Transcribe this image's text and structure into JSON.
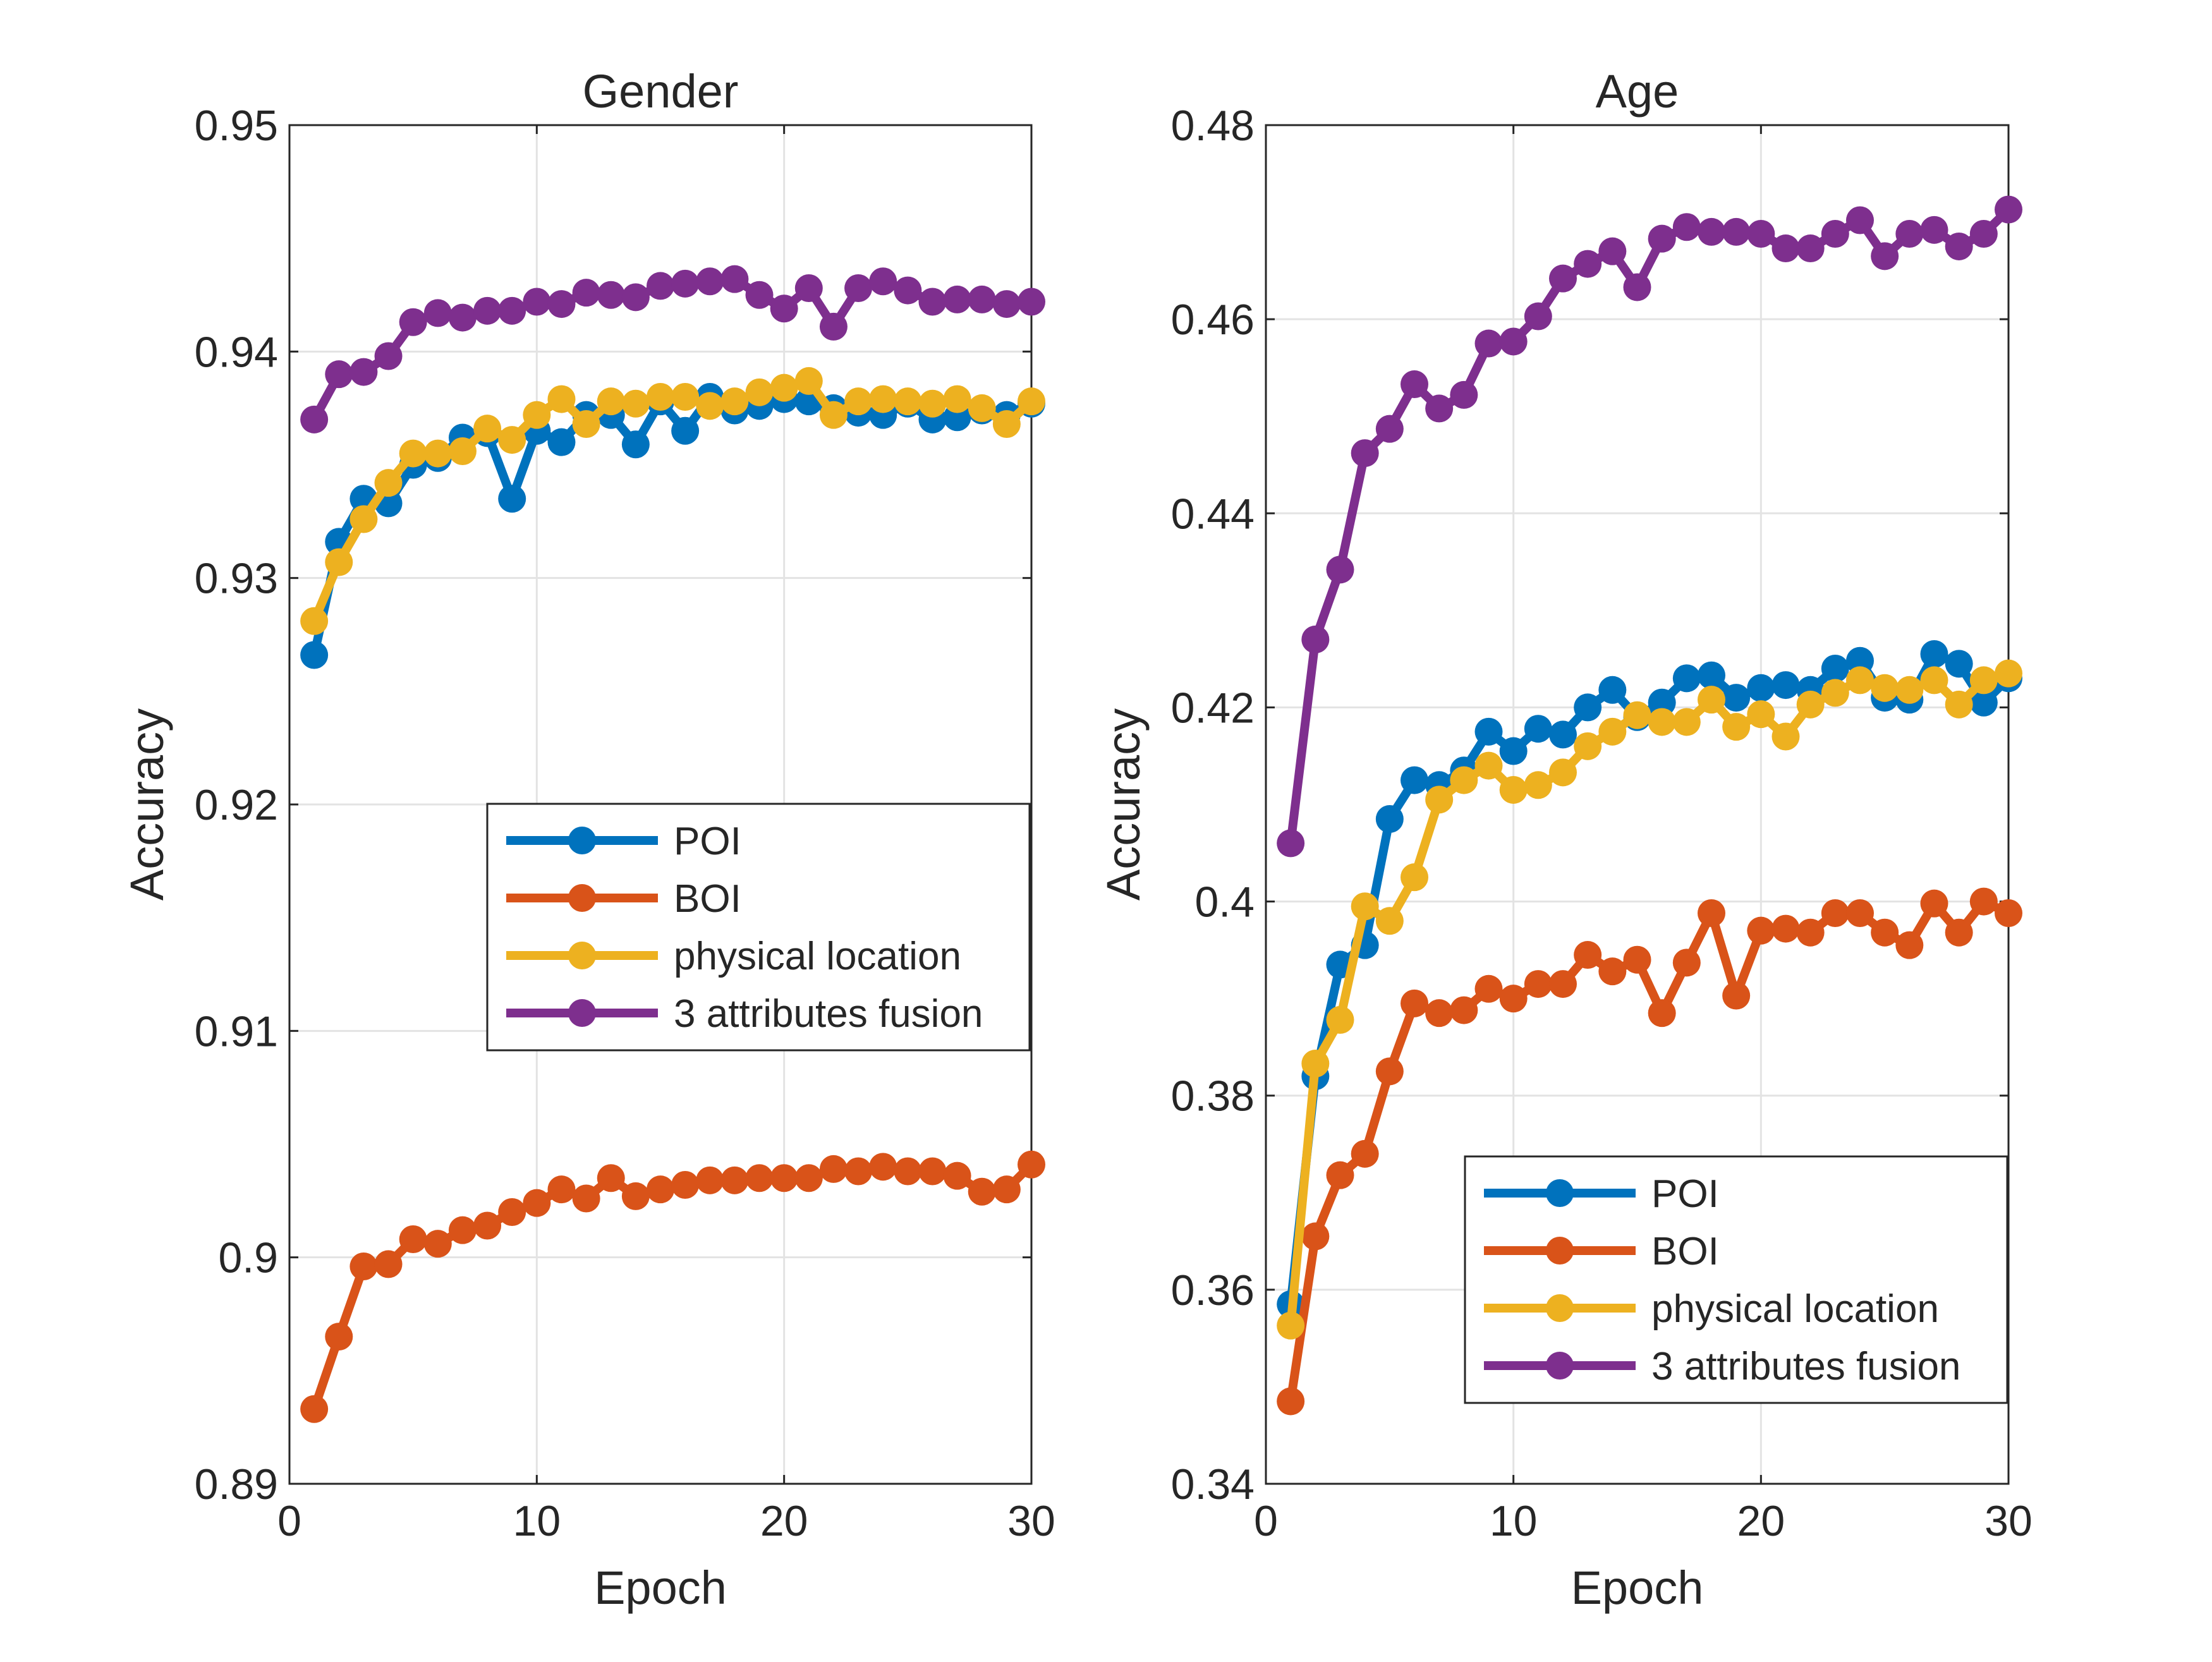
{
  "chart_data": [
    {
      "type": "line",
      "title": "Gender",
      "xlabel": "Epoch",
      "ylabel": "Accuracy",
      "xlim": [
        0,
        30
      ],
      "ylim": [
        0.89,
        0.95
      ],
      "xticks": [
        0,
        10,
        20,
        30
      ],
      "xtick_labels": [
        "0",
        "10",
        "20",
        "30"
      ],
      "yticks": [
        0.89,
        0.9,
        0.91,
        0.92,
        0.93,
        0.94,
        0.95
      ],
      "ytick_labels": [
        "0.89",
        "0.9",
        "0.91",
        "0.92",
        "0.93",
        "0.94",
        "0.95"
      ],
      "grid": true,
      "legend_position": "center-right",
      "x": [
        1,
        2,
        3,
        4,
        5,
        6,
        7,
        8,
        9,
        10,
        11,
        12,
        13,
        14,
        15,
        16,
        17,
        18,
        19,
        20,
        21,
        22,
        23,
        24,
        25,
        26,
        27,
        28,
        29,
        30
      ],
      "series": [
        {
          "name": "POI",
          "color": "#0072BD",
          "values": [
            0.9266,
            0.9316,
            0.9335,
            0.9333,
            0.935,
            0.9353,
            0.9362,
            0.9364,
            0.9335,
            0.9365,
            0.936,
            0.9372,
            0.9372,
            0.9359,
            0.9378,
            0.9365,
            0.938,
            0.9374,
            0.9376,
            0.9379,
            0.9378,
            0.9375,
            0.9373,
            0.9372,
            0.9377,
            0.937,
            0.9371,
            0.9374,
            0.9372,
            0.9377
          ]
        },
        {
          "name": "BOI",
          "color": "#D95319",
          "values": [
            0.8933,
            0.8965,
            0.8996,
            0.8997,
            0.9008,
            0.9006,
            0.9012,
            0.9014,
            0.902,
            0.9024,
            0.903,
            0.9026,
            0.9035,
            0.9027,
            0.903,
            0.9032,
            0.9034,
            0.9034,
            0.9035,
            0.9035,
            0.9035,
            0.9039,
            0.9038,
            0.904,
            0.9038,
            0.9038,
            0.9036,
            0.9029,
            0.903,
            0.9041
          ]
        },
        {
          "name": "physical location",
          "color": "#EDB120",
          "values": [
            0.9281,
            0.9307,
            0.9326,
            0.9342,
            0.9355,
            0.9355,
            0.9356,
            0.9366,
            0.9361,
            0.9372,
            0.9379,
            0.9368,
            0.9378,
            0.9377,
            0.938,
            0.938,
            0.9376,
            0.9378,
            0.9382,
            0.9384,
            0.9387,
            0.9372,
            0.9378,
            0.9379,
            0.9378,
            0.9377,
            0.9379,
            0.9375,
            0.9368,
            0.9378
          ]
        },
        {
          "name": "3 attributes fusion",
          "color": "#7E2F8E",
          "values": [
            0.937,
            0.939,
            0.9391,
            0.9398,
            0.9413,
            0.9417,
            0.9415,
            0.9418,
            0.9418,
            0.9422,
            0.9421,
            0.9426,
            0.9425,
            0.9424,
            0.9429,
            0.943,
            0.9431,
            0.9432,
            0.9425,
            0.9419,
            0.9428,
            0.9411,
            0.9428,
            0.9431,
            0.9427,
            0.9422,
            0.9423,
            0.9423,
            0.9421,
            0.9422
          ]
        }
      ]
    },
    {
      "type": "line",
      "title": "Age",
      "xlabel": "Epoch",
      "ylabel": "Accuracy",
      "xlim": [
        0,
        30
      ],
      "ylim": [
        0.34,
        0.48
      ],
      "xticks": [
        0,
        10,
        20,
        30
      ],
      "xtick_labels": [
        "0",
        "10",
        "20",
        "30"
      ],
      "yticks": [
        0.34,
        0.36,
        0.38,
        0.4,
        0.42,
        0.44,
        0.46,
        0.48
      ],
      "ytick_labels": [
        "0.34",
        "0.36",
        "0.38",
        "0.4",
        "0.42",
        "0.44",
        "0.46",
        "0.48"
      ],
      "grid": true,
      "legend_position": "bottom-right",
      "x": [
        1,
        2,
        3,
        4,
        5,
        6,
        7,
        8,
        9,
        10,
        11,
        12,
        13,
        14,
        15,
        16,
        17,
        18,
        19,
        20,
        21,
        22,
        23,
        24,
        25,
        26,
        27,
        28,
        29,
        30
      ],
      "series": [
        {
          "name": "POI",
          "color": "#0072BD",
          "values": [
            0.3585,
            0.382,
            0.3935,
            0.3955,
            0.4085,
            0.4125,
            0.412,
            0.4135,
            0.4175,
            0.4155,
            0.4178,
            0.4172,
            0.42,
            0.4218,
            0.419,
            0.4205,
            0.423,
            0.4233,
            0.421,
            0.422,
            0.4223,
            0.4218,
            0.424,
            0.4248,
            0.421,
            0.4208,
            0.4255,
            0.4245,
            0.4205,
            0.423
          ]
        },
        {
          "name": "BOI",
          "color": "#D95319",
          "values": [
            0.3485,
            0.3655,
            0.3718,
            0.374,
            0.3825,
            0.3895,
            0.3885,
            0.3888,
            0.391,
            0.39,
            0.3915,
            0.3915,
            0.3945,
            0.3928,
            0.394,
            0.3885,
            0.3937,
            0.3988,
            0.3903,
            0.397,
            0.3972,
            0.3968,
            0.3988,
            0.3988,
            0.3968,
            0.3955,
            0.3998,
            0.3968,
            0.4,
            0.3988
          ]
        },
        {
          "name": "physical location",
          "color": "#EDB120",
          "values": [
            0.3563,
            0.3833,
            0.3878,
            0.3995,
            0.398,
            0.4025,
            0.4105,
            0.4125,
            0.414,
            0.4115,
            0.412,
            0.4133,
            0.416,
            0.4175,
            0.4192,
            0.4185,
            0.4185,
            0.4208,
            0.418,
            0.4193,
            0.417,
            0.4203,
            0.4215,
            0.4228,
            0.422,
            0.4218,
            0.4228,
            0.4203,
            0.4228,
            0.4235
          ]
        },
        {
          "name": "3 attributes fusion",
          "color": "#7E2F8E",
          "values": [
            0.406,
            0.427,
            0.4342,
            0.4462,
            0.4487,
            0.4533,
            0.4508,
            0.4522,
            0.4575,
            0.4577,
            0.4603,
            0.4642,
            0.4657,
            0.467,
            0.4633,
            0.4683,
            0.4695,
            0.469,
            0.469,
            0.4688,
            0.4673,
            0.4673,
            0.4688,
            0.4702,
            0.4665,
            0.4688,
            0.4692,
            0.4675,
            0.4688,
            0.4713
          ]
        }
      ]
    }
  ]
}
